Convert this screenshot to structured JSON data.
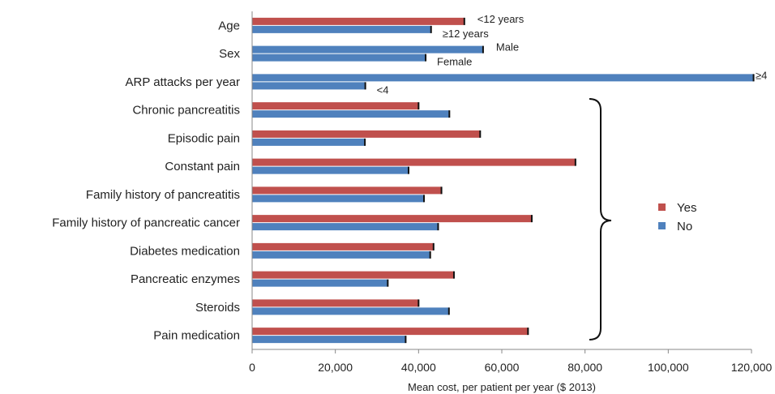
{
  "chart_data": {
    "type": "bar",
    "orientation": "horizontal",
    "xlabel": "Mean cost, per patient per year ($ 2013)",
    "xlim": [
      0,
      120000
    ],
    "xticks": [
      0,
      20000,
      40000,
      60000,
      80000,
      100000,
      120000
    ],
    "xtick_labels": [
      "0",
      "20,000",
      "40,000",
      "60,000",
      "80,000",
      "100,000",
      "120,000"
    ],
    "grid": false,
    "colors": {
      "first": "#c0504d",
      "second": "#4f81bd"
    },
    "legend": {
      "placement": "right",
      "entries": [
        {
          "label": "Yes",
          "color": "#c0504d"
        },
        {
          "label": "No",
          "color": "#4f81bd"
        }
      ]
    },
    "categories": [
      "Age",
      "Sex",
      "ARP attacks per year",
      "Chronic pancreatitis",
      "Episodic pain",
      "Constant pain",
      "Family history of pancreatitis",
      "Family history of pancreatic cancer",
      "Diabetes medication",
      "Pancreatic enzymes",
      "Steroids",
      "Pain medication"
    ],
    "rows": [
      {
        "first": 51000,
        "second": 43000,
        "first_label": "<12 years",
        "second_label": "≥12 years"
      },
      {
        "first": null,
        "second": 55500,
        "third": 41700,
        "first_label": "Male",
        "second_label": "Female"
      },
      {
        "first": null,
        "second": 120500,
        "third": 27200,
        "first_label": "≥4",
        "second_label": "<4"
      },
      {
        "first": 40000,
        "second": 47400
      },
      {
        "first": 54800,
        "second": 27100
      },
      {
        "first": 77700,
        "second": 37600
      },
      {
        "first": 45500,
        "second": 41300
      },
      {
        "first": 67200,
        "second": 44700
      },
      {
        "first": 43600,
        "second": 42800
      },
      {
        "first": 48500,
        "second": 32600
      },
      {
        "first": 40000,
        "second": 47300
      },
      {
        "first": 66300,
        "second": 36900
      }
    ]
  }
}
